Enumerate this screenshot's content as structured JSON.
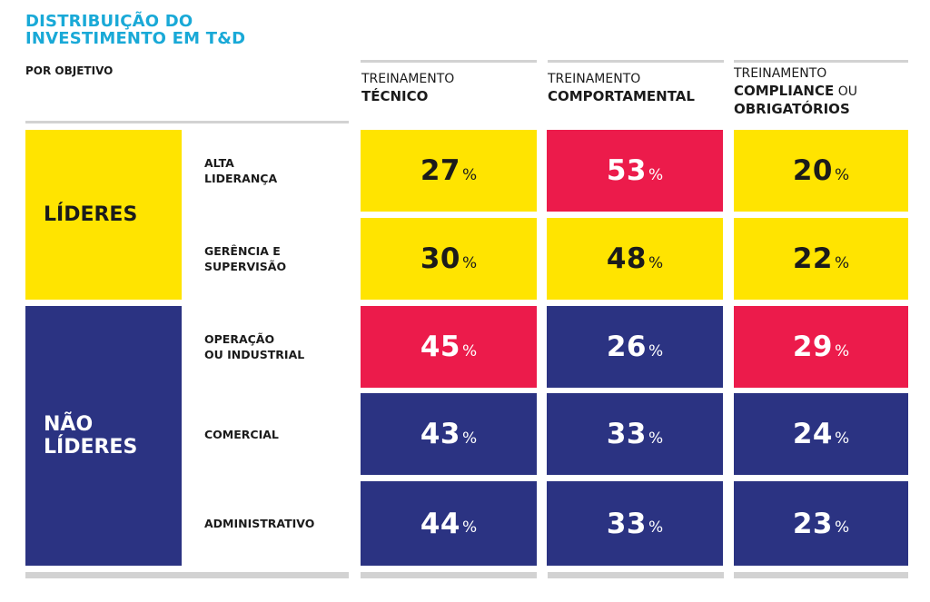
{
  "title_lines": [
    "DISTRIBUIÇÃO DO",
    "INVESTIMENTO EM T&D"
  ],
  "subtitle": "POR OBJETIVO",
  "columns": [
    {
      "pre": "TREINAMENTO",
      "bold": "TÉCNICO",
      "mid": "",
      "bold2": ""
    },
    {
      "pre": "TREINAMENTO",
      "bold": "COMPORTAMENTAL",
      "mid": "",
      "bold2": ""
    },
    {
      "pre": "TREINAMENTO",
      "bold": "COMPLIANCE",
      "mid": " OU",
      "bold2": "OBRIGATÓRIOS"
    }
  ],
  "groups": [
    {
      "label": "LÍDERES"
    },
    {
      "label": "NÃO\nLÍDERES"
    }
  ],
  "rows": [
    {
      "label": "ALTA\nLIDERANÇA"
    },
    {
      "label": "GERÊNCIA E\nSUPERVISÃO"
    },
    {
      "label": "OPERAÇÃO\nOU INDUSTRIAL"
    },
    {
      "label": "COMERCIAL"
    },
    {
      "label": "ADMINISTRATIVO"
    }
  ],
  "percent_symbol": "%",
  "colors": {
    "yellow": "#ffe400",
    "red": "#ec1b4b",
    "navy": "#2b3382",
    "title": "#19a9d7"
  },
  "chart_data": {
    "type": "table",
    "title": "DISTRIBUIÇÃO DO INVESTIMENTO EM T&D",
    "subtitle": "POR OBJETIVO",
    "columns": [
      "TREINAMENTO TÉCNICO",
      "TREINAMENTO COMPORTAMENTAL",
      "TREINAMENTO COMPLIANCE OU OBRIGATÓRIOS"
    ],
    "row_groups": [
      {
        "name": "LÍDERES",
        "rows": [
          "ALTA LIDERANÇA",
          "GERÊNCIA E SUPERVISÃO"
        ]
      },
      {
        "name": "NÃO LÍDERES",
        "rows": [
          "OPERAÇÃO OU INDUSTRIAL",
          "COMERCIAL",
          "ADMINISTRATIVO"
        ]
      }
    ],
    "unit": "%",
    "values": [
      [
        27,
        53,
        20
      ],
      [
        30,
        48,
        22
      ],
      [
        45,
        26,
        29
      ],
      [
        43,
        33,
        24
      ],
      [
        44,
        33,
        23
      ]
    ],
    "cell_colors": [
      [
        "yellow",
        "red",
        "yellow"
      ],
      [
        "yellow",
        "yellow",
        "yellow"
      ],
      [
        "red",
        "navy",
        "red"
      ],
      [
        "navy",
        "navy",
        "navy"
      ],
      [
        "navy",
        "navy",
        "navy"
      ]
    ]
  }
}
